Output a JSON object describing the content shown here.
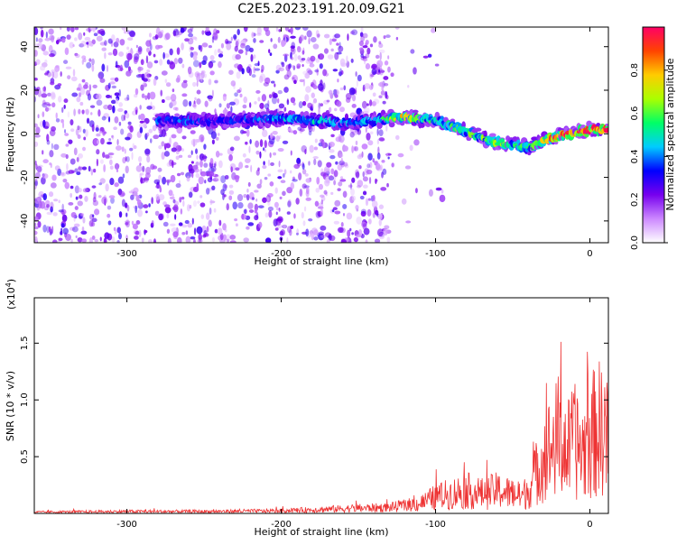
{
  "title": "C2E5.2023.191.20.09.G21",
  "chart_data": [
    {
      "type": "heatmap",
      "xlabel": "Height of straight line (km)",
      "ylabel": "Frequency (Hz)",
      "xlim": [
        -360,
        12
      ],
      "ylim": [
        -50,
        49
      ],
      "xticks": [
        -300,
        -200,
        -100,
        0
      ],
      "yticks": [
        -40,
        -20,
        0,
        20,
        40
      ],
      "colorbar": {
        "label": "Normalized spectral amplitude",
        "range": [
          0,
          1
        ],
        "ticks": [
          "0.0",
          "0.2",
          "0.4",
          "0.6",
          "0.8"
        ],
        "colors": [
          "#ffffff",
          "#cc88ff",
          "#7700ee",
          "#0000ff",
          "#00ccff",
          "#00ff66",
          "#aaff00",
          "#ffcc00",
          "#ff4400",
          "#ff0066"
        ]
      },
      "signal_track": {
        "x": [
          -280,
          -260,
          -240,
          -200,
          -180,
          -160,
          -140,
          -120,
          -100,
          -80,
          -60,
          -40,
          -20,
          0,
          12
        ],
        "y": [
          6,
          6,
          6,
          7,
          6,
          5,
          6,
          8,
          6,
          1,
          -4,
          -6,
          -1,
          2,
          2
        ],
        "peak_amplitude": [
          0.35,
          0.35,
          0.3,
          0.4,
          0.45,
          0.4,
          0.45,
          0.7,
          0.5,
          0.55,
          0.6,
          0.5,
          0.85,
          0.9,
          0.85
        ]
      },
      "background_noise_end_x": -130
    },
    {
      "type": "line",
      "xlabel": "Height of straight line (km)",
      "ylabel": "SNR (10 * v/v)",
      "scale_label_base": "(x10",
      "scale_label_exp": "4",
      "scale_label_close": ")",
      "xlim": [
        -360,
        12
      ],
      "ylim": [
        0,
        1.9
      ],
      "xticks": [
        -300,
        -200,
        -100,
        0
      ],
      "yticks": [
        "0.5",
        "1.0",
        "1.5"
      ],
      "yticks_values": [
        0.5,
        1.0,
        1.5
      ],
      "color": "#ee3333",
      "series": [
        {
          "x": [
            -360,
            -300,
            -250,
            -200,
            -175,
            -150,
            -130,
            -110,
            -100,
            -90,
            -80,
            -70,
            -60,
            -50,
            -45,
            -40,
            -35,
            -30,
            -25,
            -20,
            -15,
            -10,
            -5,
            0,
            5,
            10,
            12
          ],
          "y": [
            0.02,
            0.03,
            0.03,
            0.04,
            0.06,
            0.08,
            0.09,
            0.15,
            0.25,
            0.3,
            0.35,
            0.3,
            0.35,
            0.3,
            0.25,
            0.35,
            0.6,
            0.9,
            1.0,
            1.2,
            0.95,
            1.1,
            0.95,
            1.15,
            1.3,
            1.3,
            1.0
          ]
        }
      ]
    }
  ]
}
